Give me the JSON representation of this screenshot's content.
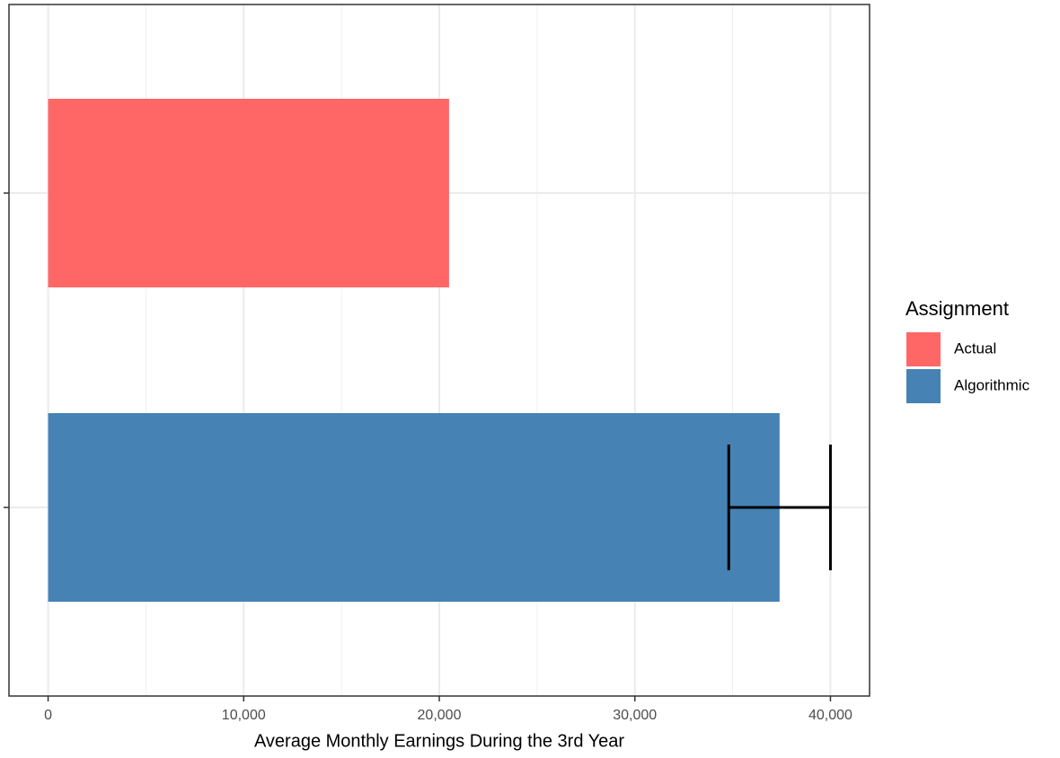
{
  "chart_data": {
    "type": "bar",
    "orientation": "horizontal",
    "x_label": "Average Monthly Earnings During the 3rd Year",
    "categories": [
      null,
      null
    ],
    "values": [
      20500,
      37400
    ],
    "errors": [
      null,
      2600
    ],
    "colors": [
      "#ff6666",
      "#4682b4"
    ],
    "legend": {
      "title": "Assignment",
      "entries": [
        "Actual",
        "Algorithmic"
      ],
      "position": "right"
    },
    "xlim": [
      -2000,
      42000
    ],
    "xticks": [
      0,
      {
        "value": 10000,
        "label": "10,000"
      },
      {
        "value": 20000,
        "label": "20,000"
      },
      {
        "value": 30000,
        "label": "30,000"
      },
      {
        "value": 40000,
        "label": "40,000"
      }
    ],
    "x_minor_ticks": [
      5000,
      15000,
      25000,
      35000
    ],
    "grid": true
  }
}
